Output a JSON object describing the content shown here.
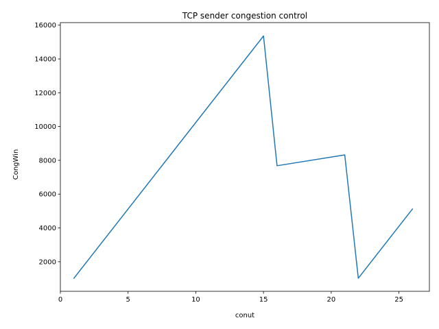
{
  "chart_data": {
    "type": "line",
    "title": "TCP sender congestion control",
    "xlabel": "conut",
    "ylabel": "CongWin",
    "xlim": [
      0,
      27.25
    ],
    "ylim": [
      250,
      16150
    ],
    "xticks": [
      0,
      5,
      10,
      15,
      20,
      25
    ],
    "yticks": [
      2000,
      4000,
      6000,
      8000,
      10000,
      12000,
      14000,
      16000
    ],
    "grid": false,
    "series": [
      {
        "color": "#1f77b4",
        "x": [
          1,
          15,
          16,
          21,
          22,
          26
        ],
        "y": [
          1024,
          15360,
          7680,
          8320,
          1024,
          5120
        ]
      }
    ]
  }
}
